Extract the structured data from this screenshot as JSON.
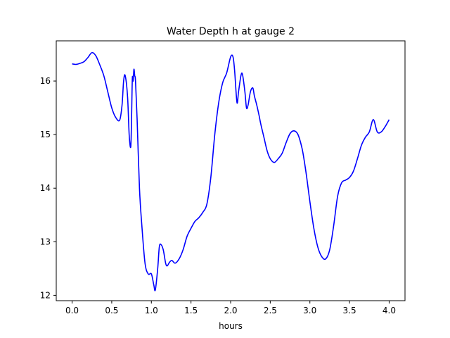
{
  "chart_data": {
    "type": "line",
    "title": "Water Depth h at gauge 2",
    "xlabel": "hours",
    "ylabel": "",
    "xlim": [
      -0.2,
      4.2
    ],
    "ylim": [
      11.9,
      16.75
    ],
    "xticks": [
      0.0,
      0.5,
      1.0,
      1.5,
      2.0,
      2.5,
      3.0,
      3.5,
      4.0
    ],
    "xtick_labels": [
      "0.0",
      "0.5",
      "1.0",
      "1.5",
      "2.0",
      "2.5",
      "3.0",
      "3.5",
      "4.0"
    ],
    "yticks": [
      12,
      13,
      14,
      15,
      16
    ],
    "ytick_labels": [
      "12",
      "13",
      "14",
      "15",
      "16"
    ],
    "grid": false,
    "series": [
      {
        "color": "#0000ff",
        "x": [
          0.0,
          0.05,
          0.1,
          0.15,
          0.2,
          0.25,
          0.3,
          0.35,
          0.4,
          0.45,
          0.5,
          0.55,
          0.6,
          0.63,
          0.65,
          0.67,
          0.7,
          0.72,
          0.74,
          0.75,
          0.76,
          0.77,
          0.78,
          0.79,
          0.8,
          0.82,
          0.85,
          0.88,
          0.92,
          0.96,
          1.0,
          1.03,
          1.05,
          1.08,
          1.1,
          1.12,
          1.15,
          1.18,
          1.2,
          1.23,
          1.26,
          1.3,
          1.35,
          1.4,
          1.45,
          1.5,
          1.55,
          1.6,
          1.65,
          1.7,
          1.75,
          1.8,
          1.85,
          1.9,
          1.95,
          2.0,
          2.03,
          2.05,
          2.08,
          2.1,
          2.13,
          2.15,
          2.18,
          2.2,
          2.22,
          2.25,
          2.28,
          2.3,
          2.33,
          2.36,
          2.38,
          2.42,
          2.46,
          2.5,
          2.55,
          2.6,
          2.65,
          2.7,
          2.75,
          2.8,
          2.85,
          2.9,
          2.93,
          2.96,
          3.0,
          3.05,
          3.1,
          3.15,
          3.2,
          3.25,
          3.3,
          3.35,
          3.4,
          3.45,
          3.5,
          3.55,
          3.6,
          3.65,
          3.7,
          3.75,
          3.8,
          3.85,
          3.9,
          3.95,
          4.0
        ],
        "y": [
          16.32,
          16.31,
          16.33,
          16.36,
          16.44,
          16.53,
          16.47,
          16.3,
          16.1,
          15.8,
          15.5,
          15.32,
          15.27,
          15.55,
          16.0,
          16.1,
          15.7,
          15.0,
          14.77,
          15.3,
          16.05,
          16.0,
          16.22,
          16.1,
          16.0,
          15.3,
          14.0,
          13.3,
          12.6,
          12.4,
          12.4,
          12.2,
          12.1,
          12.5,
          12.9,
          12.95,
          12.85,
          12.6,
          12.55,
          12.62,
          12.65,
          12.6,
          12.68,
          12.85,
          13.1,
          13.25,
          13.38,
          13.45,
          13.55,
          13.7,
          14.2,
          15.0,
          15.6,
          15.97,
          16.15,
          16.45,
          16.45,
          16.2,
          15.6,
          15.8,
          16.1,
          16.12,
          15.8,
          15.5,
          15.55,
          15.8,
          15.87,
          15.72,
          15.55,
          15.35,
          15.2,
          14.95,
          14.7,
          14.55,
          14.48,
          14.55,
          14.65,
          14.85,
          15.02,
          15.07,
          15.0,
          14.75,
          14.5,
          14.2,
          13.75,
          13.25,
          12.9,
          12.72,
          12.68,
          12.85,
          13.3,
          13.85,
          14.1,
          14.15,
          14.2,
          14.32,
          14.55,
          14.8,
          14.95,
          15.05,
          15.28,
          15.05,
          15.05,
          15.15,
          15.28
        ]
      }
    ]
  }
}
